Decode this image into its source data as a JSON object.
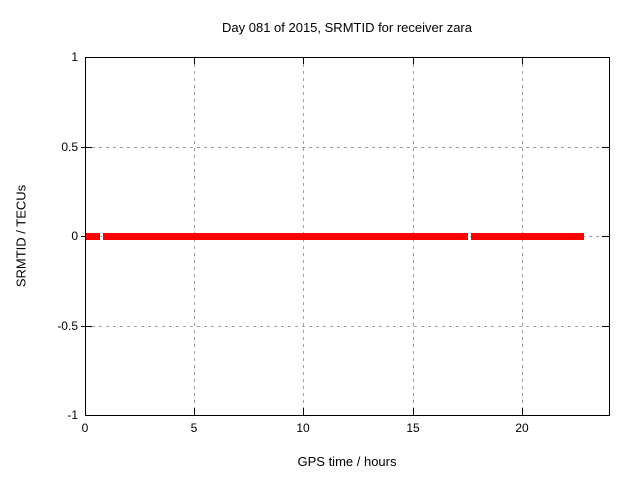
{
  "colors": {
    "line": "#ff0000",
    "grid": "#9e9e9e",
    "border": "#000000",
    "text": "#000000",
    "background": "#ffffff"
  },
  "chart_data": {
    "type": "line",
    "title": "Day 081 of 2015, SRMTID for receiver zara",
    "xlabel": "GPS time / hours",
    "ylabel": "SRMTID / TECUs",
    "xlim": [
      0,
      24
    ],
    "ylim": [
      -1,
      1
    ],
    "grid": true,
    "legend": false,
    "xticks": [
      {
        "value": 0,
        "label": "0"
      },
      {
        "value": 5,
        "label": "5"
      },
      {
        "value": 10,
        "label": "10"
      },
      {
        "value": 15,
        "label": "15"
      },
      {
        "value": 20,
        "label": "20"
      }
    ],
    "yticks": [
      {
        "value": 1,
        "label": "1"
      },
      {
        "value": 0.5,
        "label": "0.5"
      },
      {
        "value": 0,
        "label": "0"
      },
      {
        "value": -0.5,
        "label": "-0.5"
      },
      {
        "value": -1,
        "label": "-1"
      }
    ],
    "series": [
      {
        "name": "SRMTID",
        "color": "#ff0000",
        "constant_value": 0,
        "line_thickness_px": 7,
        "segments_hours": [
          [
            0.05,
            0.69
          ],
          [
            0.82,
            17.55
          ],
          [
            17.68,
            22.86
          ]
        ]
      }
    ]
  }
}
